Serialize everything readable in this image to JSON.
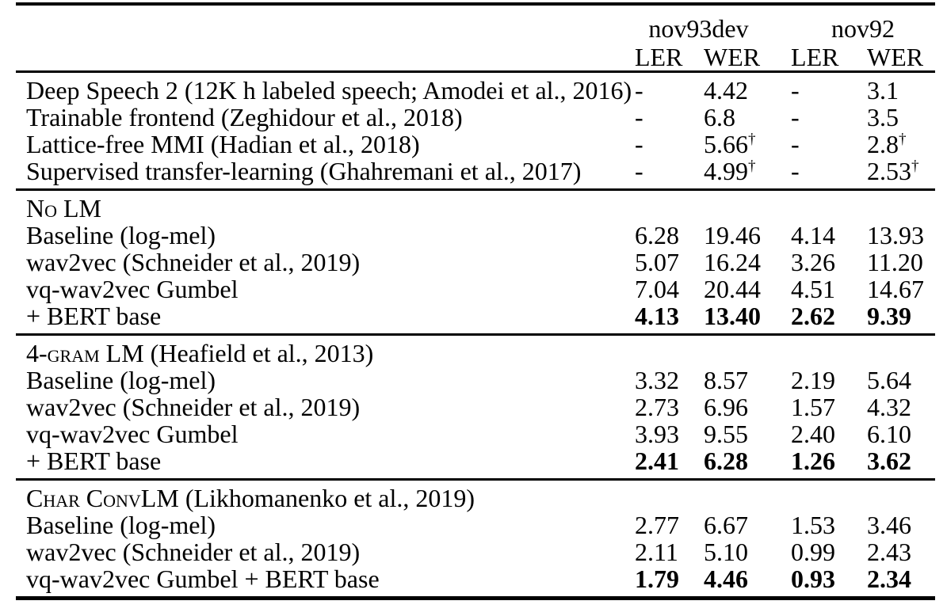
{
  "page": {
    "background": "#ffffff",
    "text_color": "#000000"
  },
  "table": {
    "header": {
      "groups": [
        {
          "label": "nov93dev",
          "span": 2
        },
        {
          "label": "nov92",
          "span": 2
        }
      ],
      "columns": [
        "LER",
        "WER",
        "LER",
        "WER"
      ]
    },
    "sections": [
      {
        "title": null,
        "rows": [
          {
            "label": "Deep Speech 2 (12K h labeled speech; Amodei et al., 2016)",
            "values": [
              "-",
              "4.42",
              "-",
              "3.1"
            ],
            "bold": false
          },
          {
            "label": "Trainable frontend (Zeghidour et al., 2018)",
            "values": [
              "-",
              "6.8",
              "-",
              "3.5"
            ],
            "bold": false
          },
          {
            "label": "Lattice-free MMI (Hadian et al., 2018)",
            "values": [
              "-",
              "5.66†",
              "-",
              "2.8†"
            ],
            "bold": false
          },
          {
            "label": "Supervised transfer-learning (Ghahremani et al., 2017)",
            "values": [
              "-",
              "4.99†",
              "-",
              "2.53†"
            ],
            "bold": false
          }
        ]
      },
      {
        "title": {
          "smallcaps": "No LM",
          "rest": ""
        },
        "rows": [
          {
            "label": "Baseline (log-mel)",
            "values": [
              "6.28",
              "19.46",
              "4.14",
              "13.93"
            ],
            "bold": false
          },
          {
            "label": "wav2vec (Schneider et al., 2019)",
            "values": [
              "5.07",
              "16.24",
              "3.26",
              "11.20"
            ],
            "bold": false
          },
          {
            "label": "vq-wav2vec Gumbel",
            "values": [
              "7.04",
              "20.44",
              "4.51",
              "14.67"
            ],
            "bold": false
          },
          {
            "label": "+ BERT base",
            "values": [
              "4.13",
              "13.40",
              "2.62",
              "9.39"
            ],
            "bold": true
          }
        ]
      },
      {
        "title": {
          "smallcaps": "4-gram LM",
          "rest": " (Heafield et al., 2013)"
        },
        "rows": [
          {
            "label": "Baseline (log-mel)",
            "values": [
              "3.32",
              "8.57",
              "2.19",
              "5.64"
            ],
            "bold": false
          },
          {
            "label": "wav2vec (Schneider et al., 2019)",
            "values": [
              "2.73",
              "6.96",
              "1.57",
              "4.32"
            ],
            "bold": false
          },
          {
            "label": "vq-wav2vec Gumbel",
            "values": [
              "3.93",
              "9.55",
              "2.40",
              "6.10"
            ],
            "bold": false
          },
          {
            "label": "+ BERT base",
            "values": [
              "2.41",
              "6.28",
              "1.26",
              "3.62"
            ],
            "bold": true
          }
        ]
      },
      {
        "title": {
          "smallcaps": "Char ConvLM",
          "rest": " (Likhomanenko et al., 2019)"
        },
        "rows": [
          {
            "label": "Baseline (log-mel)",
            "values": [
              "2.77",
              "6.67",
              "1.53",
              "3.46"
            ],
            "bold": false
          },
          {
            "label": "wav2vec (Schneider et al., 2019)",
            "values": [
              "2.11",
              "5.10",
              "0.99",
              "2.43"
            ],
            "bold": false
          },
          {
            "label": "vq-wav2vec Gumbel + BERT base",
            "values": [
              "1.79",
              "4.46",
              "0.93",
              "2.34"
            ],
            "bold": true
          }
        ]
      }
    ]
  }
}
